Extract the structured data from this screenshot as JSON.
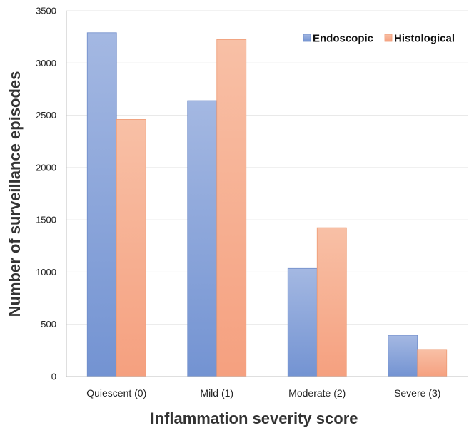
{
  "chart_data": {
    "type": "bar",
    "categories": [
      "Quiescent (0)",
      "Mild (1)",
      "Moderate (2)",
      "Severe (3)"
    ],
    "series": [
      {
        "name": "Endoscopic",
        "values": [
          3290,
          2640,
          1035,
          395
        ],
        "color": "#7f9bd6"
      },
      {
        "name": "Histological",
        "values": [
          2460,
          3225,
          1425,
          260
        ],
        "color": "#f6a683"
      }
    ],
    "xlabel": "Inflammation severity score",
    "ylabel": "Number of surveillance episodes",
    "ylim": [
      0,
      3500
    ],
    "yticks": [
      0,
      500,
      1000,
      1500,
      2000,
      2500,
      3000,
      3500
    ],
    "grid": true,
    "legend_position": "top-right"
  }
}
